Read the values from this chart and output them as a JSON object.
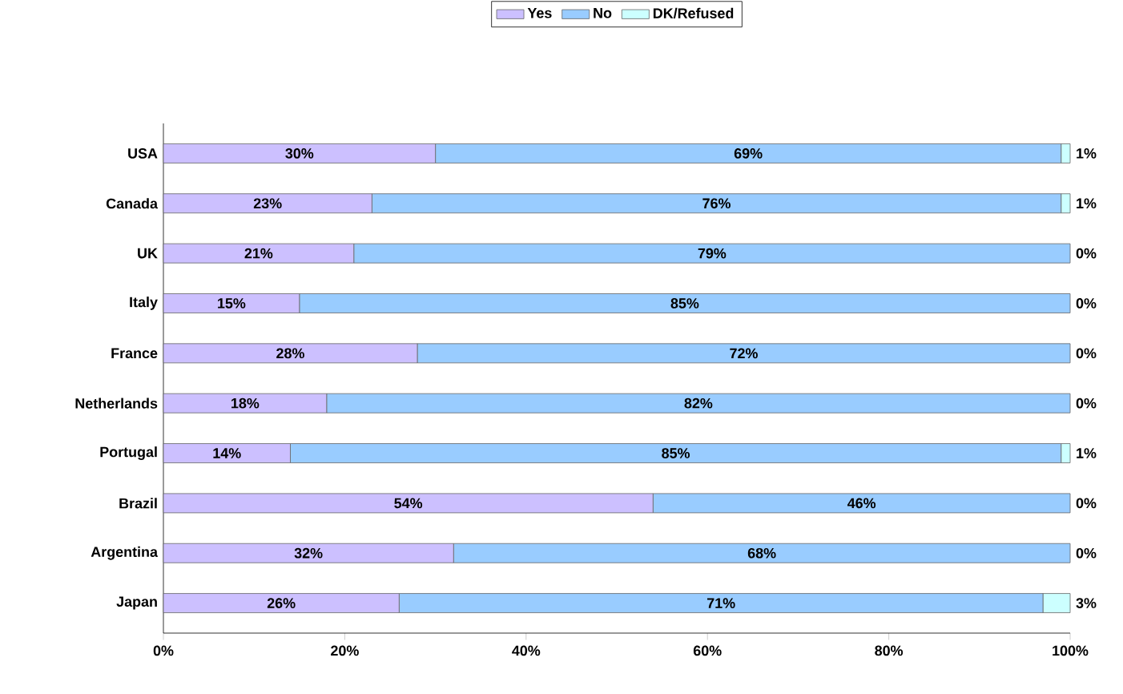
{
  "chart_data": {
    "type": "bar",
    "orientation": "horizontal",
    "stacked": true,
    "legend": "top",
    "grid": false,
    "categories": [
      "USA",
      "Canada",
      "UK",
      "Italy",
      "France",
      "Netherlands",
      "Portugal",
      "Brazil",
      "Argentina",
      "Japan"
    ],
    "series": [
      {
        "name": "Yes",
        "color": "#ccc0ff",
        "values": [
          30,
          23,
          21,
          15,
          28,
          18,
          14,
          54,
          32,
          26
        ],
        "value_labels": [
          "30%",
          "23%",
          "21%",
          "15%",
          "28%",
          "18%",
          "14%",
          "54%",
          "32%",
          "26%"
        ]
      },
      {
        "name": "No",
        "color": "#99ccff",
        "values": [
          69,
          76,
          79,
          85,
          72,
          82,
          85,
          46,
          68,
          71
        ],
        "value_labels": [
          "69%",
          "76%",
          "79%",
          "85%",
          "72%",
          "82%",
          "85%",
          "46%",
          "68%",
          "71%"
        ]
      },
      {
        "name": "DK/Refused",
        "color": "#ccffff",
        "values": [
          1,
          1,
          0,
          0,
          0,
          0,
          1,
          0,
          0,
          3
        ],
        "value_labels": [
          "1%",
          "1%",
          "0%",
          "0%",
          "0%",
          "0%",
          "1%",
          "0%",
          "0%",
          "3%"
        ]
      }
    ],
    "xlim": [
      0,
      100
    ],
    "xticks": [
      {
        "value": 0,
        "label": "0%"
      },
      {
        "value": 20,
        "label": "20%"
      },
      {
        "value": 40,
        "label": "40%"
      },
      {
        "value": 60,
        "label": "60%"
      },
      {
        "value": 80,
        "label": "80%"
      },
      {
        "value": 100,
        "label": "100%"
      }
    ]
  }
}
